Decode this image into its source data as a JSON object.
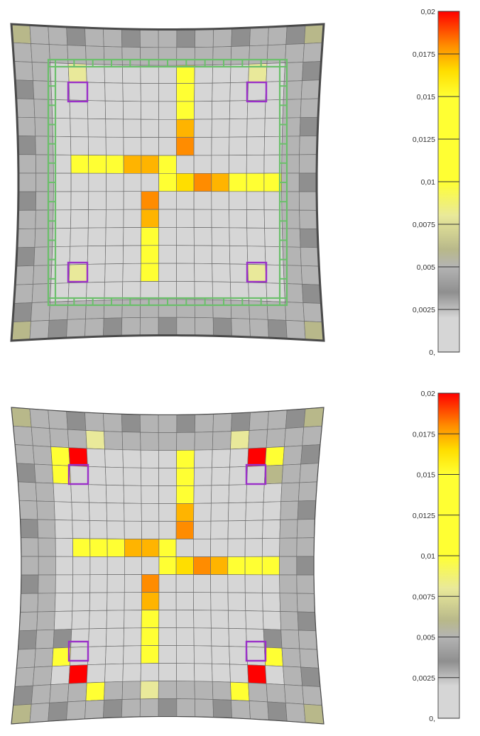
{
  "colors": {
    "mesh_line": "#6f6f6f",
    "frame_outline": "#4a4a4a",
    "column_outline": "#9a30c8",
    "edge_beam": "#6bbf6b",
    "gray_light": "#d6d6d6",
    "gray_mid": "#b4b4b4",
    "gray_dark": "#8f8f8f",
    "olive": "#b8b88a",
    "pale_yellow": "#e9e99a",
    "yellow": "#ffff33",
    "gold": "#ffde00",
    "amber": "#ffb400",
    "orange": "#ff8c00",
    "red": "#ff0000"
  },
  "legend": {
    "tick_labels": [
      "0,02",
      "0,0175",
      "0,015",
      "0,0125",
      "0,01",
      "0,0075",
      "0,005",
      "0,0025",
      "0,"
    ]
  },
  "panels": [
    {
      "id": "top",
      "shows_edge_beams": true
    },
    {
      "id": "bottom",
      "shows_edge_beams": false
    }
  ]
}
